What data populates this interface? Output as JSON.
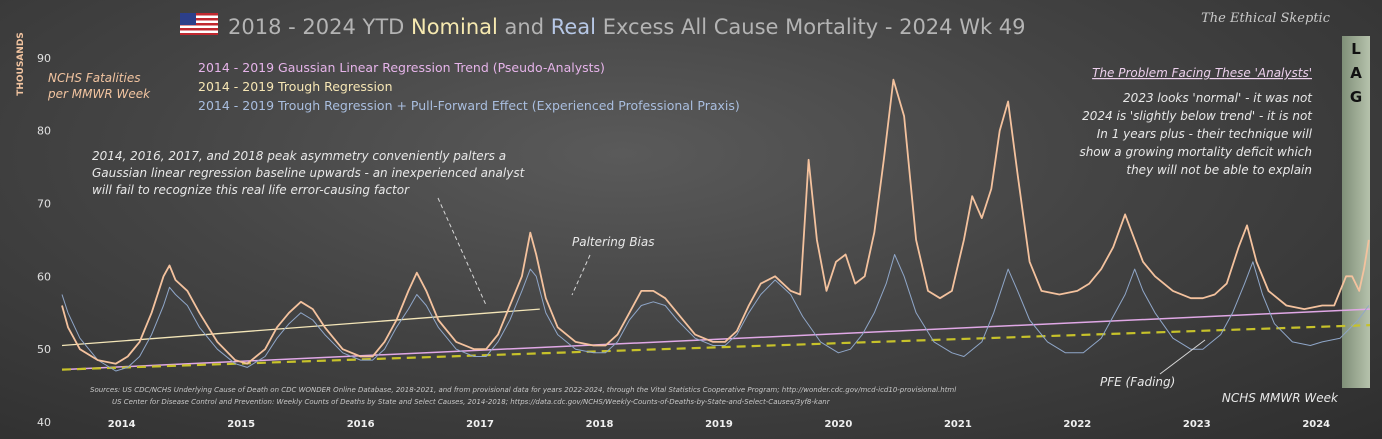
{
  "title": {
    "part1": "2018 - 2024 YTD ",
    "nominal": "Nominal",
    "part2": " and ",
    "real": "Real",
    "part3": " Excess All Cause Mortality - 2024 Wk 49"
  },
  "brand": "The Ethical Skeptic",
  "colors": {
    "nominal": "#f4c29e",
    "real": "#8fa6c8",
    "gaussian": "#e0a8e6",
    "trough": "#f4e6b8",
    "pfe": "#c7c22a",
    "lag": "#a7b49c"
  },
  "annotations": {
    "fatalities_line1": "NCHS Fatalities",
    "fatalities_line2": "per MMWR Week",
    "asym_1": "2014,  2016,  2017,  and 2018  peak asymmetry conveniently palters a",
    "asym_2": "Gaussian linear regression baseline upwards - an inexperienced analyst",
    "asym_3": "will fail to recognize this real life error-causing factor",
    "paltering": "Paltering Bias",
    "problem_head": "The Problem Facing These 'Analysts'",
    "problem_1": "2023  looks 'normal' - it was not",
    "problem_2": "2024 is 'slightly below trend' - it is not",
    "problem_3": "In 1 years plus - their technique will",
    "problem_4": "show a growing mortality deficit which",
    "problem_5": "they will not be able to explain",
    "pfe": "PFE (Fading)",
    "mmwr": "NCHS  MMWR Week",
    "lag": [
      "L",
      "A",
      "G"
    ],
    "source_1": "Sources:  US CDC/NCHS Underlying  Cause of Death on CDC WONDER Online Database, 2018-2021, and from provisional data for years 2022-2024, through the Vital Statistics Cooperative Program; http://wonder.cdc.gov/mcd-icd10-provisional.html",
    "source_2": "US Center for Disease Control and Prevention: Weekly  Counts of Deaths by State and Select Causes, 2014-2018; https://data.cdc.gov/NCHS/Weekly-Counts-of-Deaths-by-State-and-Select-Causes/3yf8-kanr"
  },
  "chart_data": {
    "type": "line",
    "title": "2018 - 2024 YTD Nominal and Real Excess All Cause Mortality - 2024 Wk 49",
    "ylabel": "THOUSANDS",
    "xlabel": "NCHS  MMWR Week",
    "ylim": [
      40,
      93
    ],
    "xlim": [
      2014.0,
      2024.95
    ],
    "yticks": [
      40,
      50,
      60,
      70,
      80,
      90
    ],
    "years": [
      "2014",
      "2015",
      "2016",
      "2017",
      "2018",
      "2019",
      "2020",
      "2021",
      "2022",
      "2023",
      "2024"
    ],
    "legend_placement": "top-left",
    "legend": [
      {
        "label": "2014 - 2019 Gaussian Linear Regression Trend (Pseudo-Analysts)",
        "color": "#e6b4ea"
      },
      {
        "label": "2014 - 2019 Trough Regression",
        "color": "#f6e6b4"
      },
      {
        "label": "2014 - 2019 Trough Regression + Pull-Forward Effect (Experienced Professional Praxis)",
        "color": "#a9bedf"
      }
    ],
    "series": [
      {
        "color": "#f4c29e",
        "points": [
          [
            2014.0,
            56
          ],
          [
            2014.05,
            53
          ],
          [
            2014.15,
            50
          ],
          [
            2014.3,
            48.5
          ],
          [
            2014.45,
            48
          ],
          [
            2014.55,
            49
          ],
          [
            2014.65,
            51
          ],
          [
            2014.75,
            55
          ],
          [
            2014.85,
            60
          ],
          [
            2014.9,
            61.5
          ],
          [
            2014.95,
            59.5
          ],
          [
            2015.05,
            58
          ],
          [
            2015.15,
            55
          ],
          [
            2015.3,
            51
          ],
          [
            2015.45,
            48.5
          ],
          [
            2015.55,
            48
          ],
          [
            2015.7,
            50
          ],
          [
            2015.8,
            53
          ],
          [
            2015.9,
            55
          ],
          [
            2016.0,
            56.5
          ],
          [
            2016.1,
            55.5
          ],
          [
            2016.2,
            53
          ],
          [
            2016.35,
            50
          ],
          [
            2016.5,
            49
          ],
          [
            2016.6,
            49
          ],
          [
            2016.7,
            51
          ],
          [
            2016.8,
            54
          ],
          [
            2016.9,
            58
          ],
          [
            2016.97,
            60.5
          ],
          [
            2017.05,
            58
          ],
          [
            2017.15,
            54
          ],
          [
            2017.3,
            51
          ],
          [
            2017.45,
            50
          ],
          [
            2017.55,
            50
          ],
          [
            2017.65,
            52
          ],
          [
            2017.75,
            56
          ],
          [
            2017.85,
            60
          ],
          [
            2017.92,
            66
          ],
          [
            2017.97,
            63
          ],
          [
            2018.05,
            57
          ],
          [
            2018.15,
            53
          ],
          [
            2018.3,
            51
          ],
          [
            2018.45,
            50.5
          ],
          [
            2018.55,
            50.5
          ],
          [
            2018.65,
            52
          ],
          [
            2018.75,
            55
          ],
          [
            2018.85,
            58
          ],
          [
            2018.95,
            58
          ],
          [
            2019.05,
            57
          ],
          [
            2019.15,
            55
          ],
          [
            2019.3,
            52
          ],
          [
            2019.45,
            51
          ],
          [
            2019.55,
            51
          ],
          [
            2019.65,
            52.5
          ],
          [
            2019.75,
            56
          ],
          [
            2019.85,
            59
          ],
          [
            2019.97,
            60
          ],
          [
            2020.1,
            58
          ],
          [
            2020.18,
            57.5
          ],
          [
            2020.25,
            76
          ],
          [
            2020.32,
            65
          ],
          [
            2020.4,
            58
          ],
          [
            2020.48,
            62
          ],
          [
            2020.56,
            63
          ],
          [
            2020.64,
            59
          ],
          [
            2020.72,
            60
          ],
          [
            2020.8,
            66
          ],
          [
            2020.88,
            76
          ],
          [
            2020.96,
            87
          ],
          [
            2021.05,
            82
          ],
          [
            2021.15,
            65
          ],
          [
            2021.25,
            58
          ],
          [
            2021.35,
            57
          ],
          [
            2021.45,
            58
          ],
          [
            2021.55,
            65
          ],
          [
            2021.62,
            71
          ],
          [
            2021.7,
            68
          ],
          [
            2021.78,
            72
          ],
          [
            2021.85,
            80
          ],
          [
            2021.92,
            84
          ],
          [
            2022.0,
            74
          ],
          [
            2022.1,
            62
          ],
          [
            2022.2,
            58
          ],
          [
            2022.35,
            57.5
          ],
          [
            2022.5,
            58
          ],
          [
            2022.6,
            59
          ],
          [
            2022.7,
            61
          ],
          [
            2022.8,
            64
          ],
          [
            2022.9,
            68.5
          ],
          [
            2022.98,
            65
          ],
          [
            2023.05,
            62
          ],
          [
            2023.15,
            60
          ],
          [
            2023.3,
            58
          ],
          [
            2023.45,
            57
          ],
          [
            2023.55,
            57
          ],
          [
            2023.65,
            57.5
          ],
          [
            2023.75,
            59
          ],
          [
            2023.85,
            64
          ],
          [
            2023.92,
            67
          ],
          [
            2024.0,
            62
          ],
          [
            2024.1,
            58
          ],
          [
            2024.25,
            56
          ],
          [
            2024.4,
            55.5
          ],
          [
            2024.55,
            56
          ],
          [
            2024.65,
            56
          ],
          [
            2024.75,
            60
          ],
          [
            2024.8,
            60
          ],
          [
            2024.86,
            58
          ],
          [
            2024.9,
            61
          ],
          [
            2024.94,
            65
          ]
        ]
      },
      {
        "color": "#8fa6c8",
        "points": [
          [
            2014.0,
            57.5
          ],
          [
            2014.05,
            55
          ],
          [
            2014.15,
            51.5
          ],
          [
            2014.3,
            48.5
          ],
          [
            2014.45,
            47
          ],
          [
            2014.55,
            47.5
          ],
          [
            2014.65,
            49
          ],
          [
            2014.75,
            52
          ],
          [
            2014.85,
            56
          ],
          [
            2014.9,
            58.5
          ],
          [
            2014.95,
            57.5
          ],
          [
            2015.05,
            56
          ],
          [
            2015.15,
            53
          ],
          [
            2015.3,
            50
          ],
          [
            2015.45,
            48
          ],
          [
            2015.55,
            47.5
          ],
          [
            2015.7,
            49
          ],
          [
            2015.8,
            51.5
          ],
          [
            2015.9,
            53.5
          ],
          [
            2016.0,
            55
          ],
          [
            2016.1,
            54
          ],
          [
            2016.2,
            52
          ],
          [
            2016.35,
            49.5
          ],
          [
            2016.5,
            48.5
          ],
          [
            2016.6,
            48.5
          ],
          [
            2016.7,
            50
          ],
          [
            2016.8,
            53
          ],
          [
            2016.9,
            55.5
          ],
          [
            2016.97,
            57.5
          ],
          [
            2017.05,
            56
          ],
          [
            2017.15,
            53
          ],
          [
            2017.3,
            50
          ],
          [
            2017.45,
            49
          ],
          [
            2017.55,
            49
          ],
          [
            2017.65,
            51
          ],
          [
            2017.75,
            54
          ],
          [
            2017.85,
            58
          ],
          [
            2017.92,
            61
          ],
          [
            2017.97,
            60
          ],
          [
            2018.05,
            55
          ],
          [
            2018.15,
            52
          ],
          [
            2018.3,
            50
          ],
          [
            2018.45,
            49.5
          ],
          [
            2018.55,
            49.5
          ],
          [
            2018.65,
            51
          ],
          [
            2018.75,
            54
          ],
          [
            2018.85,
            56
          ],
          [
            2018.95,
            56.5
          ],
          [
            2019.05,
            56
          ],
          [
            2019.15,
            54
          ],
          [
            2019.3,
            51.5
          ],
          [
            2019.45,
            50.5
          ],
          [
            2019.55,
            50.5
          ],
          [
            2019.65,
            52
          ],
          [
            2019.75,
            55
          ],
          [
            2019.85,
            57.5
          ],
          [
            2019.97,
            59.5
          ],
          [
            2020.1,
            57.5
          ],
          [
            2020.2,
            54.5
          ],
          [
            2020.35,
            51
          ],
          [
            2020.5,
            49.5
          ],
          [
            2020.6,
            50
          ],
          [
            2020.7,
            52
          ],
          [
            2020.8,
            55
          ],
          [
            2020.9,
            59
          ],
          [
            2020.97,
            63
          ],
          [
            2021.05,
            60
          ],
          [
            2021.15,
            55
          ],
          [
            2021.3,
            51
          ],
          [
            2021.45,
            49.5
          ],
          [
            2021.55,
            49
          ],
          [
            2021.7,
            51
          ],
          [
            2021.8,
            55
          ],
          [
            2021.92,
            61
          ],
          [
            2022.0,
            58
          ],
          [
            2022.1,
            54
          ],
          [
            2022.25,
            51
          ],
          [
            2022.4,
            49.5
          ],
          [
            2022.55,
            49.5
          ],
          [
            2022.7,
            51.5
          ],
          [
            2022.8,
            54.5
          ],
          [
            2022.9,
            57.5
          ],
          [
            2022.98,
            61
          ],
          [
            2023.05,
            58
          ],
          [
            2023.15,
            55
          ],
          [
            2023.3,
            51.5
          ],
          [
            2023.45,
            50
          ],
          [
            2023.55,
            50
          ],
          [
            2023.7,
            52
          ],
          [
            2023.8,
            55
          ],
          [
            2023.9,
            59
          ],
          [
            2023.97,
            62
          ],
          [
            2024.05,
            57.5
          ],
          [
            2024.15,
            53.5
          ],
          [
            2024.3,
            51
          ],
          [
            2024.45,
            50.5
          ],
          [
            2024.55,
            51
          ],
          [
            2024.7,
            51.5
          ],
          [
            2024.85,
            54
          ],
          [
            2024.94,
            56
          ]
        ]
      },
      {
        "color": "#e0a8e6",
        "points": [
          [
            2014.0,
            47.2
          ],
          [
            2024.95,
            55.5
          ]
        ]
      },
      {
        "color": "#f4e6b8",
        "points": [
          [
            2014.0,
            50.5
          ],
          [
            2018.0,
            55.5
          ]
        ]
      },
      {
        "color": "#c7c22a",
        "points": [
          [
            2014.0,
            47.2
          ],
          [
            2024.95,
            53.3
          ]
        ]
      }
    ]
  }
}
